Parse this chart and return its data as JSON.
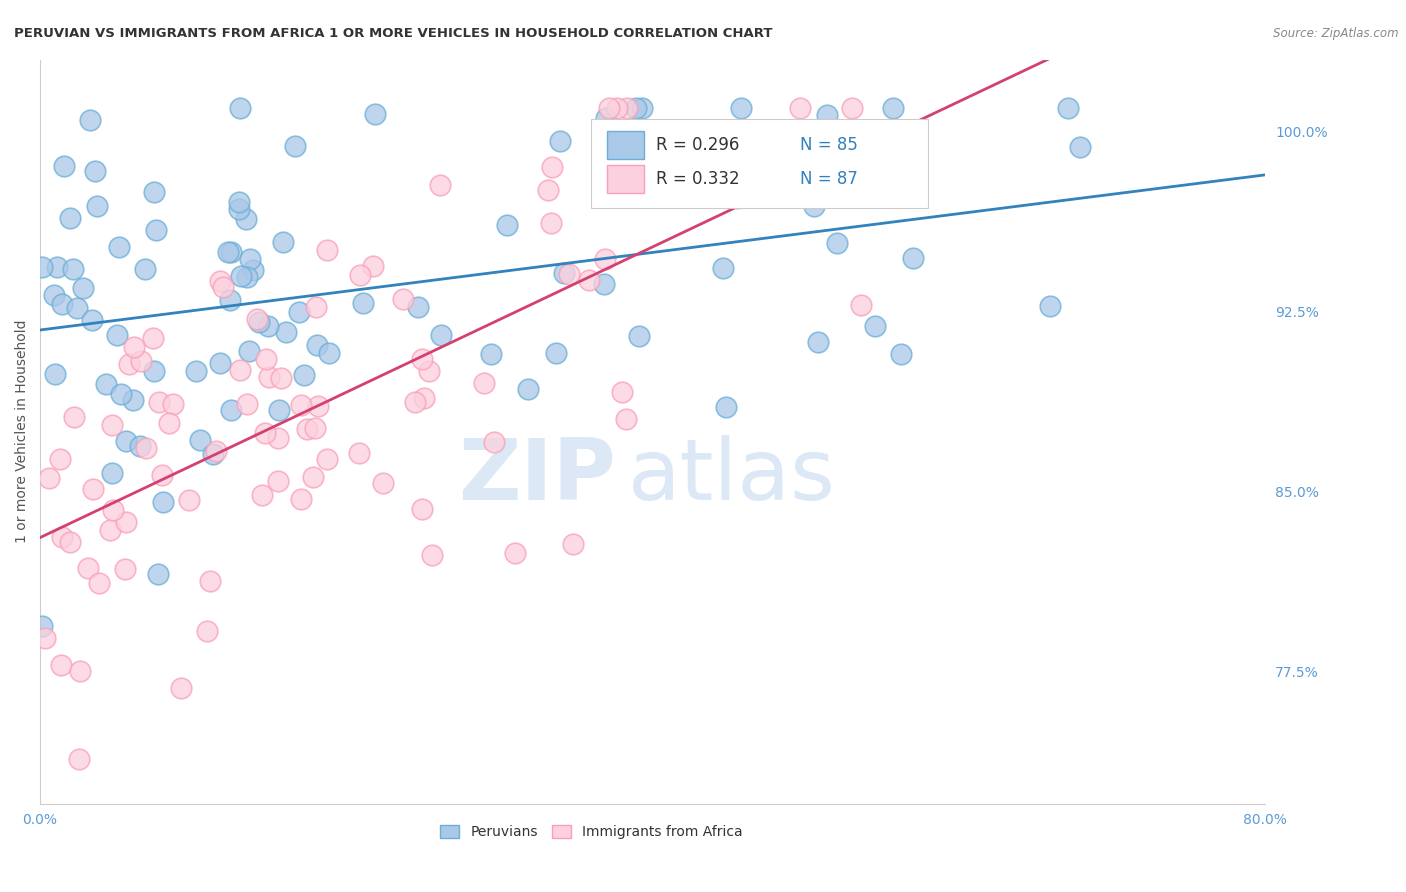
{
  "title": "PERUVIAN VS IMMIGRANTS FROM AFRICA 1 OR MORE VEHICLES IN HOUSEHOLD CORRELATION CHART",
  "source_text": "Source: ZipAtlas.com",
  "ylabel": "1 or more Vehicles in Household",
  "xlim": [
    0.0,
    80.0
  ],
  "ylim": [
    72.0,
    103.0
  ],
  "xtick_left_label": "0.0%",
  "xtick_right_label": "80.0%",
  "yticks_right": [
    77.5,
    85.0,
    92.5,
    100.0
  ],
  "ytick_labels_right": [
    "77.5%",
    "85.0%",
    "92.5%",
    "100.0%"
  ],
  "legend_label_blue": "Peruvians",
  "legend_label_pink": "Immigrants from Africa",
  "R_blue": 0.296,
  "N_blue": 85,
  "R_pink": 0.332,
  "N_pink": 87,
  "blue_color": "#6baed6",
  "blue_fill": "#aac8e8",
  "pink_color": "#fa9fb5",
  "pink_fill": "#fcd0de",
  "trend_blue": "#3182bd",
  "trend_pink": "#d44070",
  "watermark_color": "#dce8f5",
  "background_color": "#ffffff",
  "grid_color": "#cccccc",
  "tick_color": "#5b9bd5",
  "title_color": "#333333",
  "source_color": "#888888",
  "ylabel_color": "#555555",
  "legend_R_color": "#333333",
  "legend_N_color": "#3182bd"
}
